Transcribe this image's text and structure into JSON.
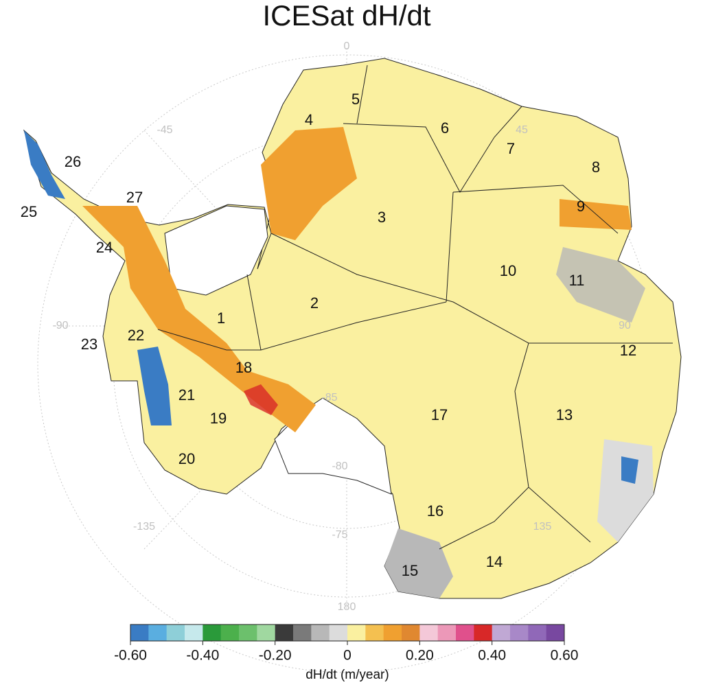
{
  "title": "ICESat dH/dt",
  "basins": [
    "1",
    "2",
    "3",
    "4",
    "5",
    "6",
    "7",
    "8",
    "9",
    "10",
    "11",
    "12",
    "13",
    "14",
    "15",
    "16",
    "17",
    "18",
    "19",
    "20",
    "21",
    "22",
    "23",
    "24",
    "25",
    "26",
    "27"
  ],
  "graticule": {
    "longitude_labels": [
      "0",
      "45",
      "90",
      "135",
      "180",
      "-45",
      "-90",
      "-135"
    ],
    "latitude_labels": [
      "-85",
      "-80",
      "-75"
    ]
  },
  "colorbar": {
    "lim": [
      -0.6,
      0.6
    ],
    "colors": [
      "#3a7cc4",
      "#5aaee0",
      "#8ecfd8",
      "#c6e9ec",
      "#2a9a3a",
      "#4cb04c",
      "#6cc06c",
      "#a0d8a0",
      "#3a3a3a",
      "#7a7a7a",
      "#b8b8b8",
      "#dcdcdc",
      "#faf0a0",
      "#f4c050",
      "#f0a030",
      "#e08830",
      "#f4c8d8",
      "#ec98b8",
      "#e0508c",
      "#d82828",
      "#c0a8d4",
      "#a888c8",
      "#9068b8",
      "#7848a0"
    ],
    "ticks": [
      {
        "value": -0.6,
        "label": "-0.60"
      },
      {
        "value": -0.4,
        "label": "-0.40"
      },
      {
        "value": -0.2,
        "label": "-0.20"
      },
      0,
      {
        "value": 0.2,
        "label": "0.20"
      },
      {
        "value": 0.4,
        "label": "0.40"
      },
      {
        "value": 0.6,
        "label": "0.60"
      }
    ],
    "label": "dH/dt (m/year)"
  }
}
